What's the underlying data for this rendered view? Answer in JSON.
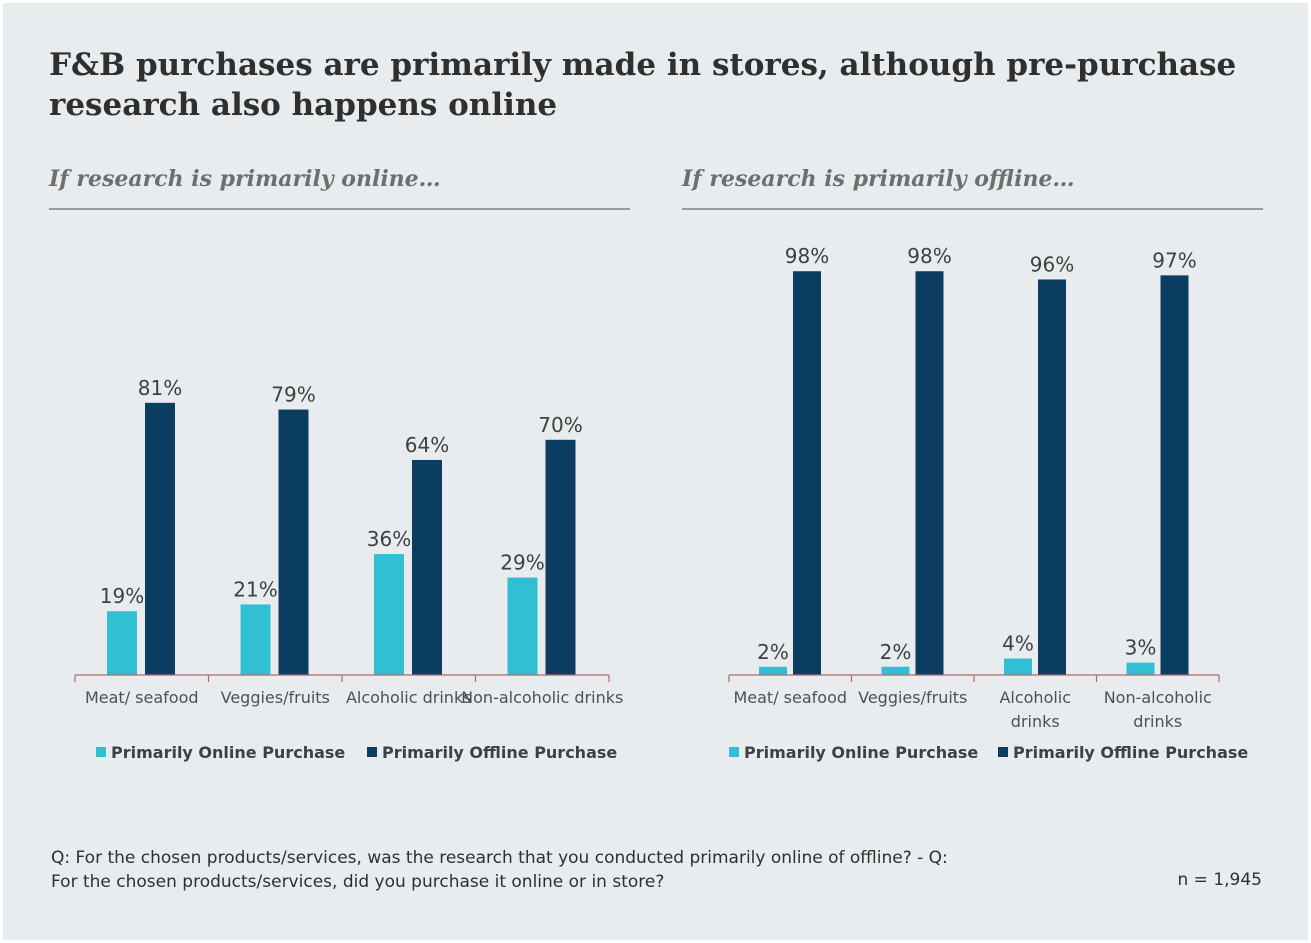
{
  "title": "F&B purchases are primarily made in stores, although pre-purchase research also happens online",
  "footnote": "Q: For the chosen products/services, was the research that you conducted primarily online of offline? - Q: For the chosen products/services, did you purchase it online or in store?",
  "sample_size": "n = 1,945",
  "colors": {
    "online": "#31c0d3",
    "offline": "#0b3d61",
    "axis": "#b06a6a",
    "online_label": "#404040",
    "offline_label": "#404040"
  },
  "chart_data": [
    {
      "type": "bar",
      "title": "If research is primarily online…",
      "categories": [
        "Meat/ seafood",
        "Veggies/fruits",
        "Alcoholic drinks",
        "Non-alcoholic drinks"
      ],
      "series": [
        {
          "name": "Primarily Online Purchase",
          "values": [
            19,
            21,
            36,
            29
          ],
          "labels": [
            "19%",
            "21%",
            "36%",
            "29%"
          ]
        },
        {
          "name": "Primarily Offline Purchase",
          "values": [
            81,
            79,
            64,
            70
          ],
          "labels": [
            "81%",
            "79%",
            "64%",
            "70%"
          ]
        }
      ],
      "ylim": [
        0,
        100
      ],
      "grid": false,
      "legend": "bottom"
    },
    {
      "type": "bar",
      "title": "If research is primarily offline…",
      "categories": [
        "Meat/ seafood",
        "Veggies/fruits",
        "Alcoholic drinks",
        "Non-alcoholic drinks"
      ],
      "series": [
        {
          "name": "Primarily Online Purchase",
          "values": [
            2,
            2,
            4,
            3
          ],
          "labels": [
            "2%",
            "2%",
            "4%",
            "3%"
          ]
        },
        {
          "name": "Primarily Offline Purchase",
          "values": [
            98,
            98,
            96,
            97
          ],
          "labels": [
            "98%",
            "98%",
            "96%",
            "97%"
          ]
        }
      ],
      "ylim": [
        0,
        100
      ],
      "grid": false,
      "legend": "bottom"
    }
  ]
}
